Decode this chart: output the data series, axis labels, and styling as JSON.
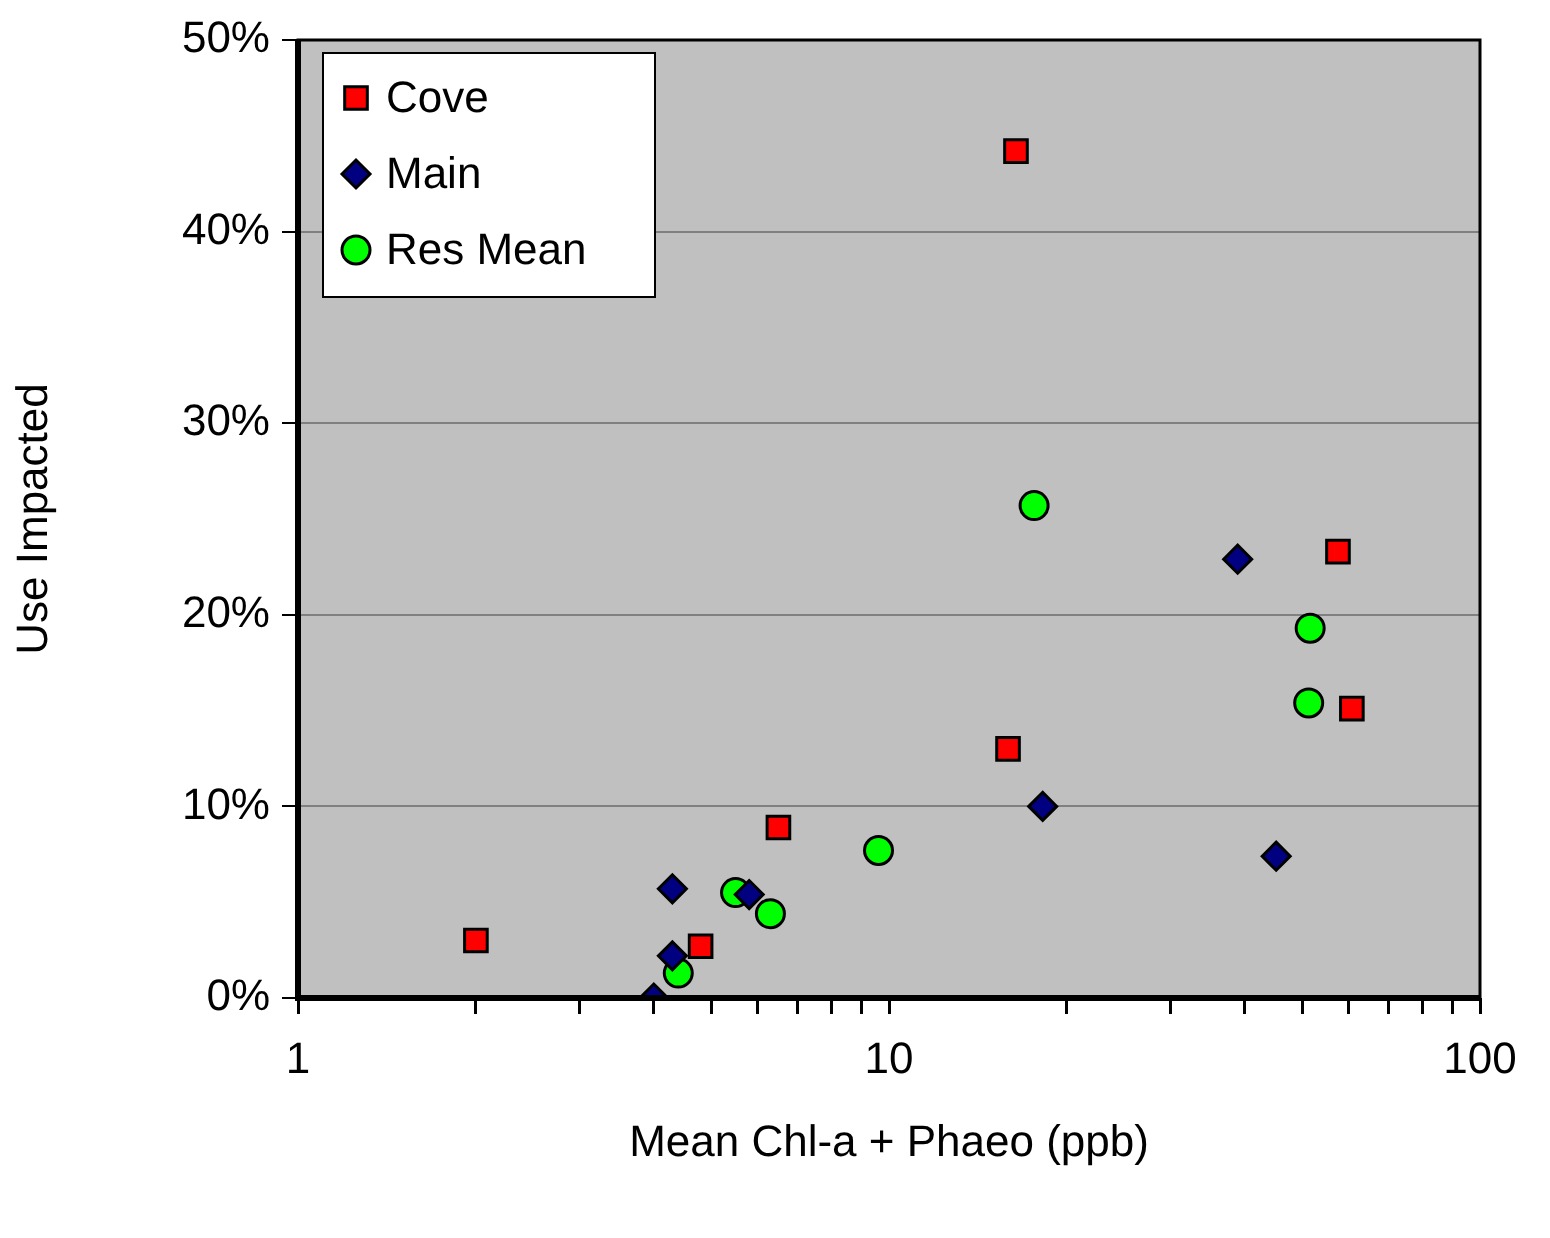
{
  "chart_data": {
    "type": "scatter",
    "xlabel": "Mean Chl-a + Phaeo (ppb)",
    "ylabel": "Use Impacted",
    "log": "x",
    "grid": "y",
    "legend": "top left",
    "xlim": [
      1,
      100
    ],
    "xticks": [
      1,
      {
        "value": 2,
        "label": null
      },
      {
        "value": 3,
        "label": null
      },
      {
        "value": 4,
        "label": null
      },
      {
        "value": 5,
        "label": null
      },
      {
        "value": 6,
        "label": null
      },
      {
        "value": 7,
        "label": null
      },
      {
        "value": 8,
        "label": null
      },
      {
        "value": 9,
        "label": null
      },
      10,
      {
        "value": 20,
        "label": null
      },
      {
        "value": 30,
        "label": null
      },
      {
        "value": 40,
        "label": null
      },
      {
        "value": 50,
        "label": null
      },
      {
        "value": 60,
        "label": null
      },
      {
        "value": 70,
        "label": null
      },
      {
        "value": 80,
        "label": null
      },
      {
        "value": 90,
        "label": null
      },
      100
    ],
    "ylim": [
      0,
      50
    ],
    "yticks": [
      {
        "value": 0,
        "label": "0%"
      },
      {
        "value": 10,
        "label": "10%"
      },
      {
        "value": 20,
        "label": "20%"
      },
      {
        "value": 30,
        "label": "30%"
      },
      {
        "value": 40,
        "label": "40%"
      },
      {
        "value": 50,
        "label": "50%"
      }
    ],
    "series": [
      {
        "name": "Cove",
        "color": "#ff0000",
        "marker": "square",
        "x": [
          2.0,
          4.8,
          6.5,
          15.9,
          16.4,
          57.5,
          60.7
        ],
        "values": [
          3.0,
          2.7,
          8.9,
          13.0,
          44.2,
          23.3,
          15.1
        ]
      },
      {
        "name": "Main",
        "color": "#000080",
        "marker": "diamond",
        "x": [
          4.3,
          4.3,
          4.0,
          5.8,
          18.2,
          38.9,
          45.2
        ],
        "values": [
          5.7,
          2.2,
          0.0,
          5.4,
          10.0,
          22.9,
          7.4
        ]
      },
      {
        "name": "Res Mean",
        "color": "#00ff00",
        "marker": "circle",
        "x": [
          4.4,
          5.5,
          6.3,
          9.6,
          17.6,
          51.6,
          51.3
        ],
        "values": [
          1.3,
          5.5,
          4.4,
          7.7,
          25.7,
          19.3,
          15.4
        ]
      }
    ]
  }
}
